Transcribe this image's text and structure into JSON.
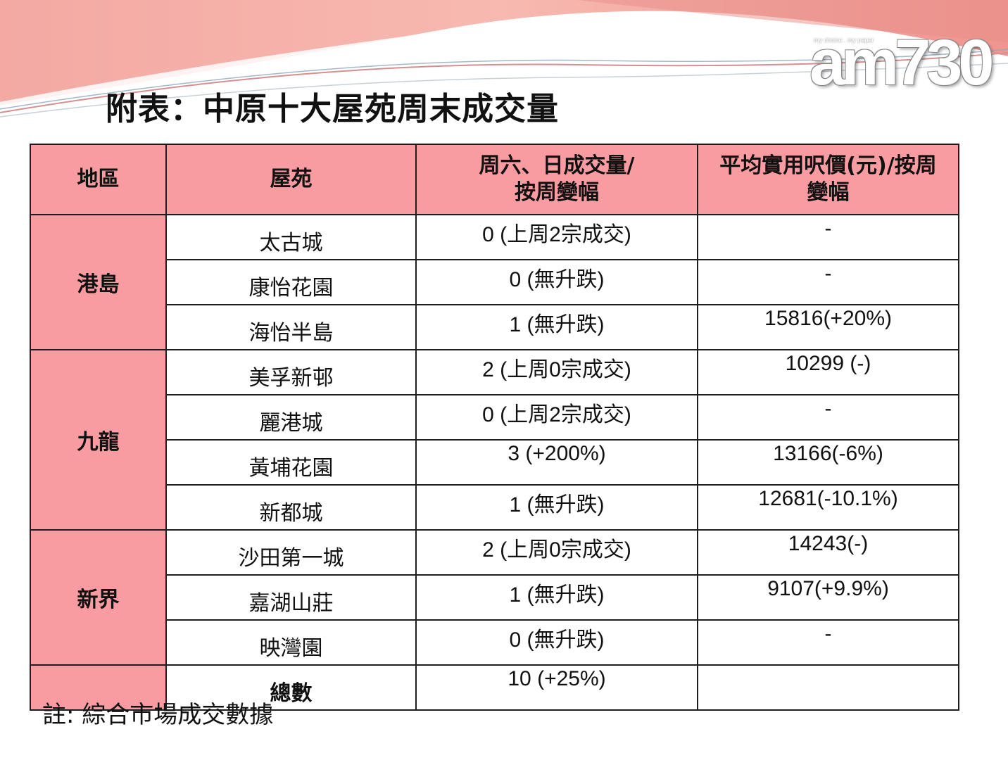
{
  "brand": {
    "tagline": "my choice . my paper",
    "logo": "am730"
  },
  "title": "附表：中原十大屋苑周末成交量",
  "headers": [
    "地區",
    "屋苑",
    "周六、日成交量/\n按周變幅",
    "平均實用呎價(元)/按周\n變幅"
  ],
  "regions": [
    {
      "name": "港島",
      "rows": [
        {
          "estate": "太古城",
          "volume": "0 (上周2宗成交)",
          "price": "-"
        },
        {
          "estate": "康怡花園",
          "volume": "0 (無升跌)",
          "price": "-"
        },
        {
          "estate": "海怡半島",
          "volume": "1 (無升跌)",
          "price": "15816(+20%)"
        }
      ]
    },
    {
      "name": "九龍",
      "rows": [
        {
          "estate": "美孚新邨",
          "volume": "2 (上周0宗成交)",
          "price": "10299 (-)"
        },
        {
          "estate": "麗港城",
          "volume": "0 (上周2宗成交)",
          "price": "-"
        },
        {
          "estate": "黃埔花園",
          "volume": "3 (+200%)",
          "price": "13166(-6%)"
        },
        {
          "estate": "新都城",
          "volume": "1 (無升跌)",
          "price": "12681(-10.1%)"
        }
      ]
    },
    {
      "name": "新界",
      "rows": [
        {
          "estate": "沙田第一城",
          "volume": "2 (上周0宗成交)",
          "price": "14243(-)"
        },
        {
          "estate": "嘉湖山莊",
          "volume": "1 (無升跌)",
          "price": "9107(+9.9%)"
        },
        {
          "estate": "映灣園",
          "volume": "0 (無升跌)",
          "price": "-"
        }
      ]
    }
  ],
  "total": {
    "label": "總數",
    "volume": "10 (+25%)",
    "price": ""
  },
  "note": "註: 綜合市場成交數據",
  "colors": {
    "header_bg": "#f89ca1",
    "border": "#1e1e1e",
    "banner_pink": "#f2a4a0"
  }
}
